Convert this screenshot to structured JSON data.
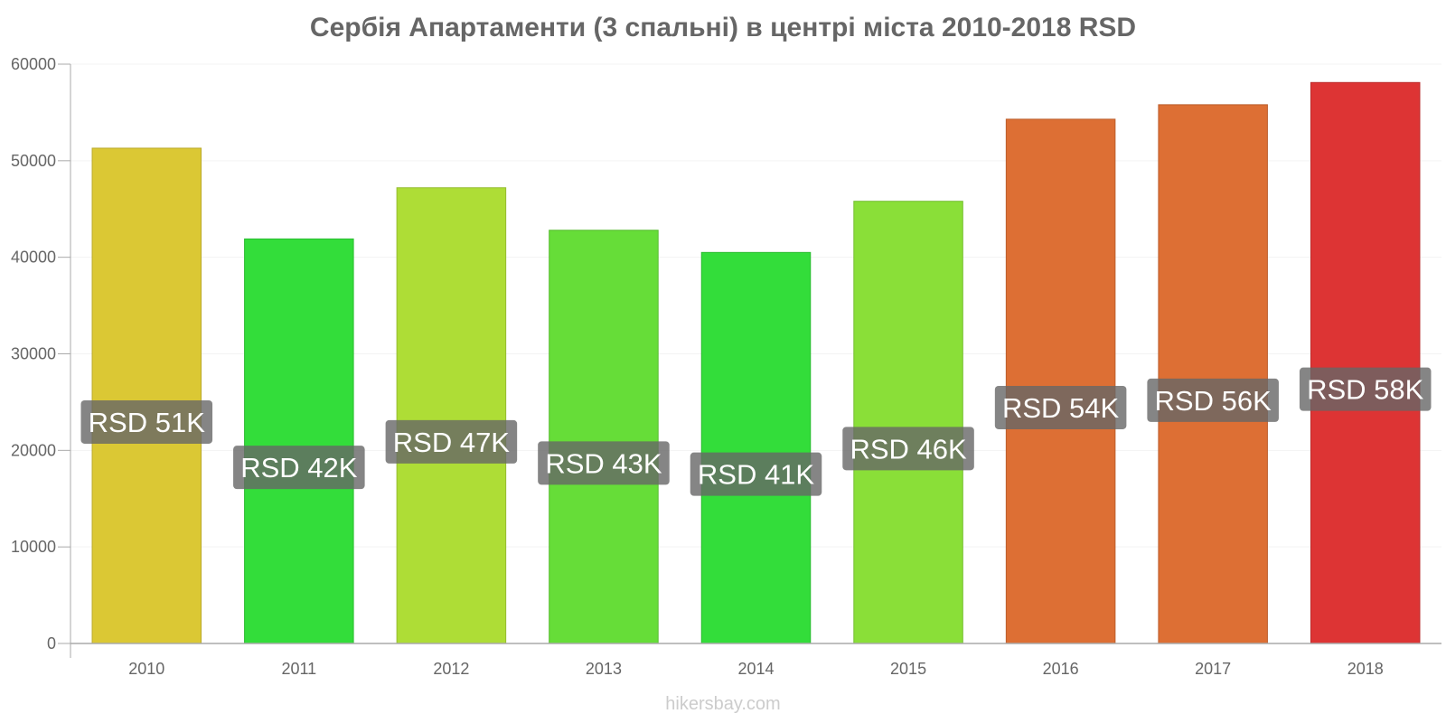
{
  "chart_data": {
    "type": "bar",
    "title": "Сербія Апартаменти (3 спальні) в центрі міста 2010-2018 RSD",
    "categories": [
      "2010",
      "2011",
      "2012",
      "2013",
      "2014",
      "2015",
      "2016",
      "2017",
      "2018"
    ],
    "values": [
      51300,
      41900,
      47200,
      42800,
      40500,
      45800,
      54300,
      55800,
      58100
    ],
    "data_labels": [
      "RSD 51K",
      "RSD 42K",
      "RSD 47K",
      "RSD 43K",
      "RSD 41K",
      "RSD 46K",
      "RSD 54K",
      "RSD 56K",
      "RSD 58K"
    ],
    "bar_colors": [
      "#dbc834",
      "#33dd3a",
      "#aedd36",
      "#66dd38",
      "#33dd3a",
      "#8adf38",
      "#dd6f34",
      "#dd6f34",
      "#dd3434"
    ],
    "label_bg_color": "#666666",
    "ylim": [
      0,
      60000
    ],
    "yticks": [
      0,
      10000,
      20000,
      30000,
      40000,
      50000,
      60000
    ],
    "grid": true,
    "legend": "none"
  },
  "source": "hikersbay.com"
}
